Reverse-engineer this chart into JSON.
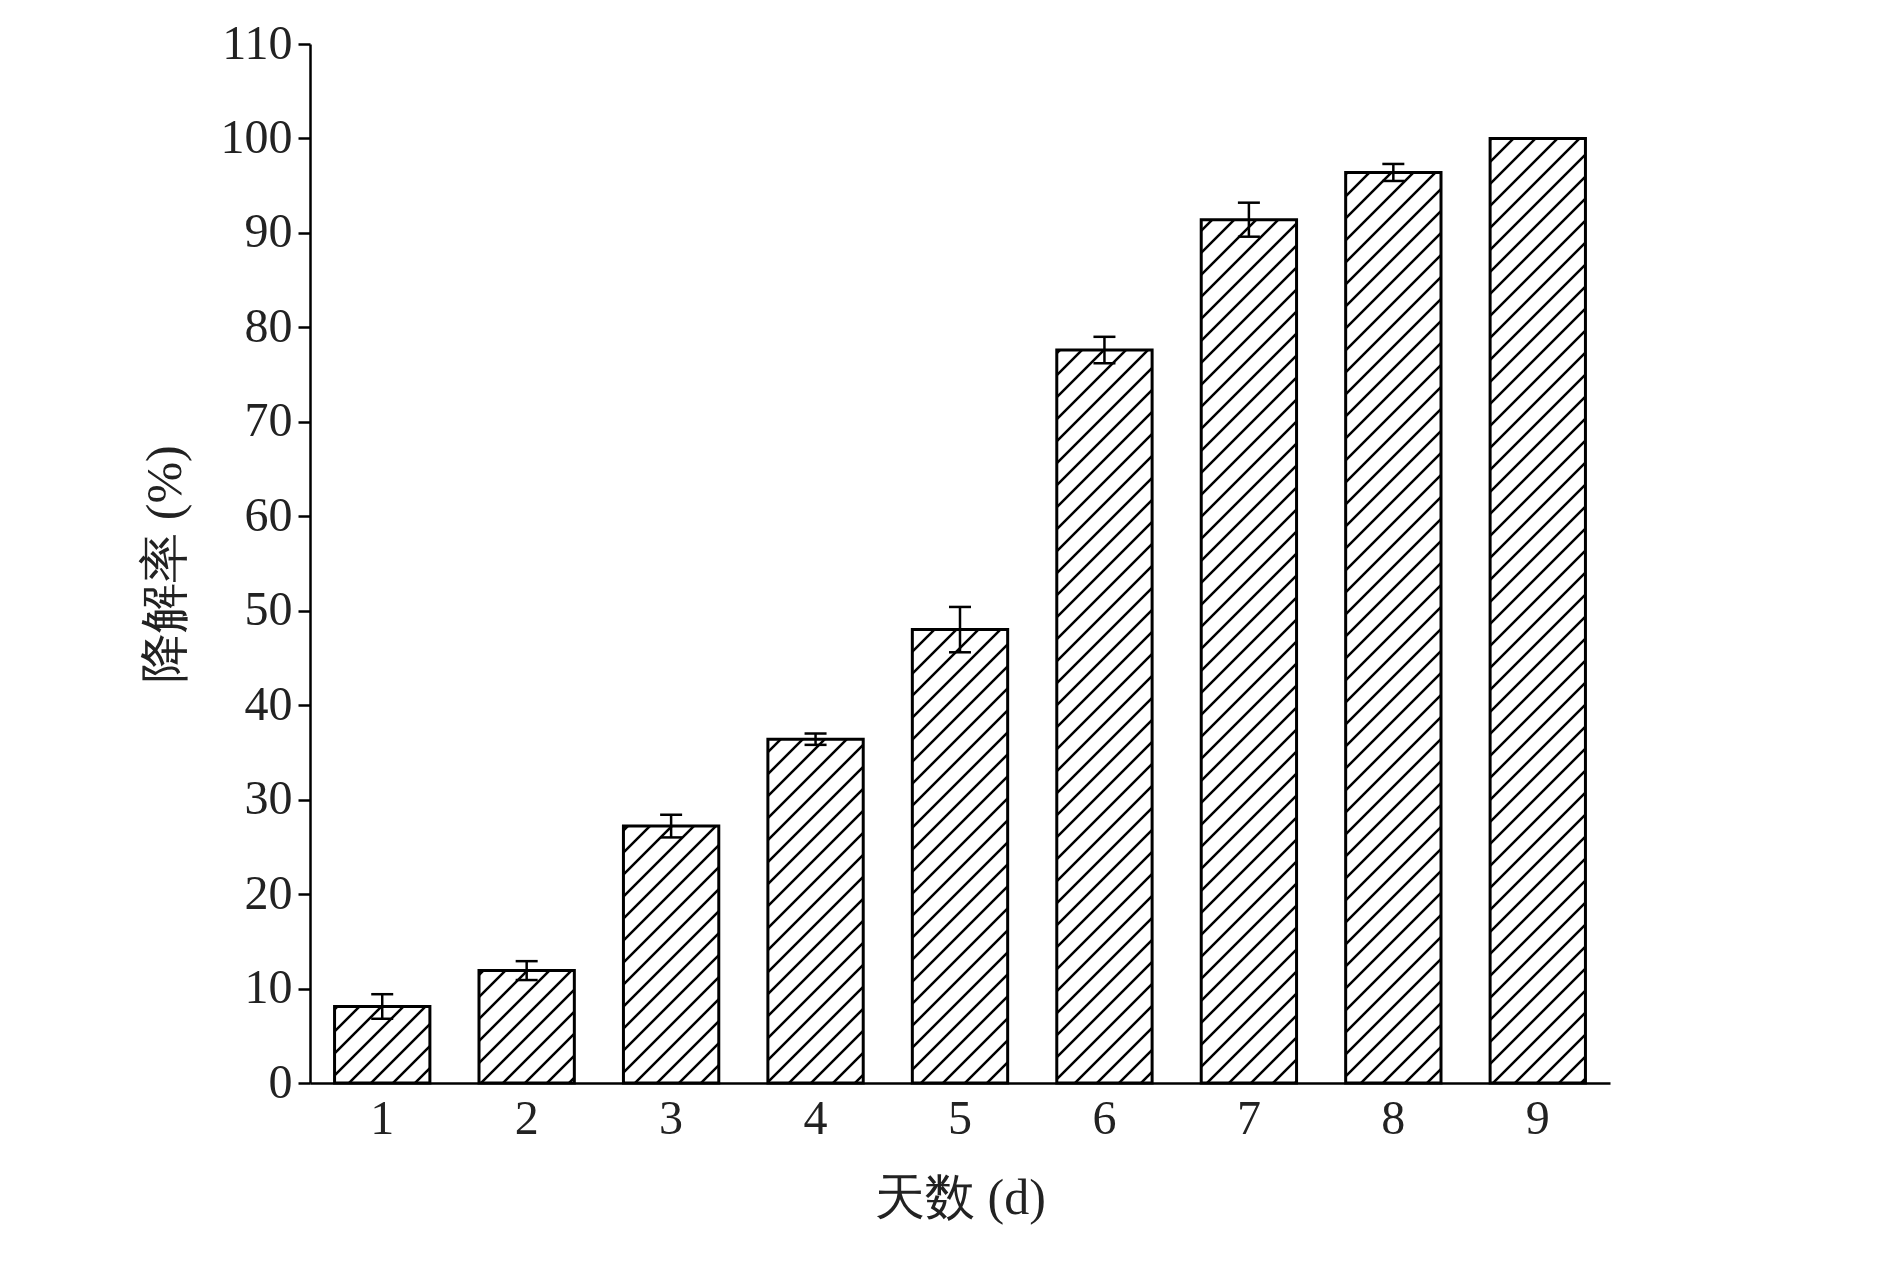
{
  "chart_data": {
    "type": "bar",
    "xlabel": "天数 (d)",
    "ylabel": "降解率 (%)",
    "categories": [
      "1",
      "2",
      "3",
      "4",
      "5",
      "6",
      "7",
      "8",
      "9"
    ],
    "series": [
      {
        "color": "#000000",
        "values": [
          8.1,
          11.9,
          27.2,
          36.4,
          48.0,
          77.6,
          91.4,
          96.4,
          100
        ],
        "errors": [
          1.3,
          1.0,
          1.2,
          0.6,
          2.4,
          1.4,
          1.8,
          0.9,
          null
        ]
      }
    ],
    "ylim": [
      0,
      110
    ],
    "yticks": [
      0,
      10,
      20,
      30,
      40,
      50,
      60,
      70,
      80,
      90,
      100,
      110
    ],
    "grid": false
  }
}
